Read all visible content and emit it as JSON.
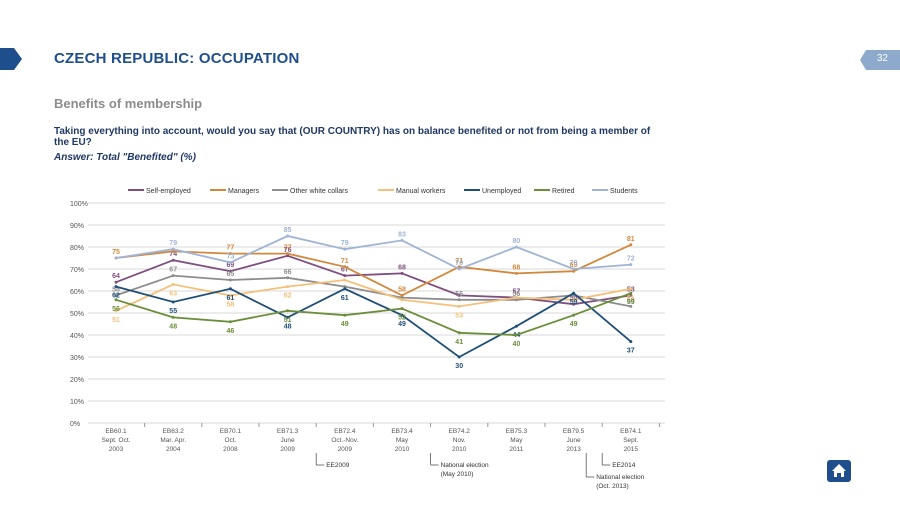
{
  "header": {
    "title": "CZECH REPUBLIC: OCCUPATION",
    "page_number": "32",
    "subtitle": "Benefits of membership",
    "question": "Taking everything into account, would you say that (OUR COUNTRY) has on balance benefited or not from being a member of the EU?",
    "answer": "Answer: Total \"Benefited\" (%)"
  },
  "colors": {
    "accent": "#1f4e8c",
    "grid": "#d9d9d9"
  },
  "icons": {
    "left_tab": "chevron-tab-icon",
    "home": "home-icon"
  },
  "chart_data": {
    "type": "line",
    "y_ticks": [
      "0%",
      "10%",
      "20%",
      "30%",
      "40%",
      "50%",
      "60%",
      "70%",
      "80%",
      "90%",
      "100%"
    ],
    "ylim": [
      0,
      100
    ],
    "legend_position": "top",
    "grid": true,
    "categories": [
      [
        "EB60.1",
        "Sept. Oct.",
        "2003"
      ],
      [
        "EB63.2",
        "Mar. Apr.",
        "2004"
      ],
      [
        "EB70.1",
        "Oct.",
        "2008"
      ],
      [
        "EB71.3",
        "June",
        "2009"
      ],
      [
        "EB72.4",
        "Oct.-Nov.",
        "2009"
      ],
      [
        "EB73.4",
        "May",
        "2010"
      ],
      [
        "EB74.2",
        "Nov.",
        "2010"
      ],
      [
        "EB75.3",
        "May",
        "2011"
      ],
      [
        "EB79.5",
        "June",
        "2013"
      ],
      [
        "EB74.1",
        "Sept.",
        "2015"
      ]
    ],
    "series": [
      {
        "name": "Self-employed",
        "color": "#7f4f7f",
        "values": [
          64,
          74,
          69,
          76,
          67,
          68,
          58,
          57,
          54,
          58
        ],
        "labels": [
          "64",
          "74",
          "69",
          "76",
          "67",
          "68",
          "",
          "57",
          "54",
          "58"
        ]
      },
      {
        "name": "Managers",
        "color": "#d2883c",
        "values": [
          75,
          78,
          77,
          77,
          71,
          58,
          71,
          68,
          69,
          81
        ],
        "labels": [
          "75",
          "",
          "77",
          "77",
          "71",
          "58",
          "71",
          "68",
          "69",
          "81"
        ]
      },
      {
        "name": "Other white collars",
        "color": "#8d8d8d",
        "values": [
          58,
          67,
          65,
          66,
          62,
          57,
          56,
          56,
          58,
          53
        ],
        "labels": [
          "58",
          "67",
          "65",
          "66",
          "",
          "",
          "56",
          "56",
          "",
          "53"
        ]
      },
      {
        "name": "Manual workers",
        "color": "#f4c07a",
        "values": [
          51,
          63,
          58,
          62,
          65,
          56,
          53,
          57,
          56,
          61
        ],
        "labels": [
          "51",
          "63",
          "58",
          "62",
          "",
          "",
          "53",
          "",
          "",
          "61"
        ]
      },
      {
        "name": "Unemployed",
        "color": "#1f4e79",
        "values": [
          62,
          55,
          61,
          48,
          61,
          49,
          30,
          44,
          59,
          37
        ],
        "labels": [
          "62",
          "55",
          "61",
          "48",
          "61",
          "49",
          "30",
          "44",
          "59",
          "37"
        ]
      },
      {
        "name": "Retired",
        "color": "#6b8e3a",
        "values": [
          56,
          48,
          46,
          51,
          49,
          52,
          41,
          40,
          49,
          59
        ],
        "labels": [
          "56",
          "48",
          "46",
          "51",
          "49",
          "52",
          "41",
          "40",
          "49",
          "59"
        ]
      },
      {
        "name": "Students",
        "color": "#9fb4d6",
        "values": [
          75,
          79,
          73,
          85,
          79,
          83,
          70,
          80,
          70,
          72
        ],
        "labels": [
          "",
          "79",
          "73",
          "85",
          "79",
          "83",
          "70",
          "80",
          "70",
          "72"
        ]
      }
    ],
    "annotations": [
      {
        "after_category": 3,
        "lines": [
          "EE2009"
        ]
      },
      {
        "after_category": 5,
        "lines": [
          "National election",
          "(May 2010)"
        ]
      },
      {
        "after_category": 8,
        "lines": [
          "EE2014"
        ]
      },
      {
        "after_category": 8,
        "lines": [
          "National election",
          "(Oct. 2013)"
        ]
      }
    ]
  }
}
